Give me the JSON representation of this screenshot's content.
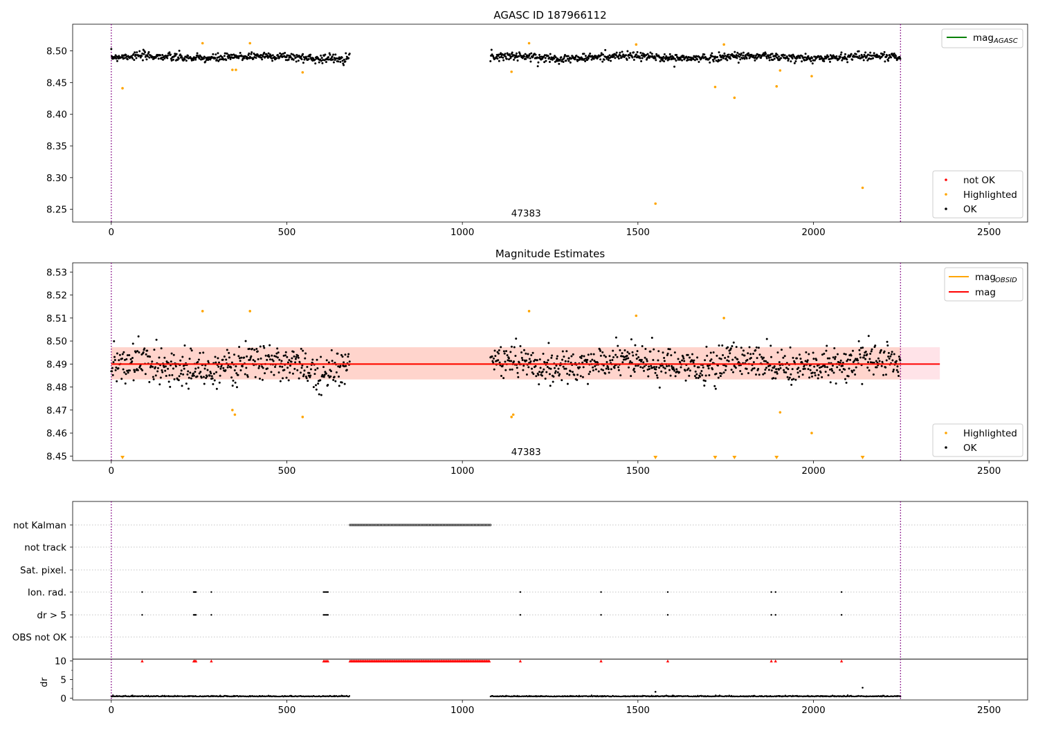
{
  "colors": {
    "ok": "#000000",
    "highlighted": "#ffa500",
    "not_ok": "#ff0000",
    "mag_agasc": "#008000",
    "mag_obsid": "#ffa500",
    "mag": "#ff0000",
    "band_outer": "#ffc0cb",
    "band_inner": "#ffc8b4",
    "boundary": "#800080",
    "grid": "#b0b0b0"
  },
  "chart_data": [
    {
      "type": "scatter",
      "title": "AGASC ID 187966112",
      "xlim": [
        -110,
        2610
      ],
      "ylim": [
        8.23,
        8.542
      ],
      "xticks": [
        0,
        500,
        1000,
        1500,
        2000,
        2500
      ],
      "yticks": [
        8.25,
        8.3,
        8.35,
        8.4,
        8.45,
        8.5
      ],
      "ytick_labels": [
        "8.25",
        "8.30",
        "8.35",
        "8.40",
        "8.45",
        "8.50"
      ],
      "obsid_annotation": {
        "text": "47383",
        "x": 1080
      },
      "boundaries_x": [
        0,
        2248
      ],
      "legend_top": {
        "placement": "top-right",
        "entries": [
          {
            "label": "mag",
            "sub": "AGASC",
            "color_key": "mag_agasc"
          }
        ]
      },
      "legend_bottom": {
        "placement": "bottom-right",
        "entries": [
          {
            "label": "not OK",
            "color_key": "not_ok"
          },
          {
            "label": "Highlighted",
            "color_key": "highlighted"
          },
          {
            "label": "OK",
            "color_key": "ok"
          }
        ]
      },
      "ok_segments": [
        {
          "x_range": [
            0,
            680
          ],
          "mean": 8.49,
          "spread": 0.0055
        },
        {
          "x_range": [
            1080,
            2248
          ],
          "mean": 8.49,
          "spread": 0.0055
        }
      ],
      "highlighted_points": [
        [
          32,
          8.441
        ],
        [
          260,
          8.512
        ],
        [
          345,
          8.47
        ],
        [
          355,
          8.47
        ],
        [
          395,
          8.512
        ],
        [
          545,
          8.466
        ],
        [
          1140,
          8.467
        ],
        [
          1190,
          8.512
        ],
        [
          1495,
          8.51
        ],
        [
          1550,
          8.259
        ],
        [
          1720,
          8.443
        ],
        [
          1745,
          8.51
        ],
        [
          1775,
          8.426
        ],
        [
          1895,
          8.444
        ],
        [
          1905,
          8.469
        ],
        [
          1995,
          8.46
        ],
        [
          2140,
          8.284
        ]
      ]
    },
    {
      "type": "scatter",
      "title": "Magnitude Estimates",
      "xlim": [
        -110,
        2610
      ],
      "ylim": [
        8.448,
        8.534
      ],
      "xticks": [
        0,
        500,
        1000,
        1500,
        2000,
        2500
      ],
      "yticks": [
        8.45,
        8.46,
        8.47,
        8.48,
        8.49,
        8.5,
        8.51,
        8.52,
        8.53
      ],
      "ytick_labels": [
        "8.45",
        "8.46",
        "8.47",
        "8.48",
        "8.49",
        "8.50",
        "8.51",
        "8.52",
        "8.53"
      ],
      "obsid_annotation": {
        "text": "47383",
        "x": 1080
      },
      "boundaries_x": [
        0,
        2248
      ],
      "mag_line": {
        "value": 8.49,
        "band_outer": [
          8.4833,
          8.4973
        ],
        "x_range": [
          0,
          2360
        ]
      },
      "mag_obsid_line": {
        "value": 8.49,
        "band": [
          8.4833,
          8.4973
        ],
        "x_range": [
          0,
          2248
        ]
      },
      "legend_top": {
        "placement": "top-right",
        "entries": [
          {
            "label": "mag",
            "sub": "OBSID",
            "color_key": "mag_obsid"
          },
          {
            "label": "mag",
            "sub": "",
            "color_key": "mag"
          }
        ]
      },
      "legend_bottom": {
        "placement": "bottom-right",
        "entries": [
          {
            "label": "Highlighted",
            "color_key": "highlighted"
          },
          {
            "label": "OK",
            "color_key": "ok"
          }
        ]
      },
      "ok_segments": [
        {
          "x_range": [
            0,
            680
          ],
          "mean": 8.489,
          "spread": 0.0065
        },
        {
          "x_range": [
            1080,
            2248
          ],
          "mean": 8.49,
          "spread": 0.006
        }
      ],
      "highlighted_points": [
        [
          260,
          8.513
        ],
        [
          345,
          8.47
        ],
        [
          352,
          8.468
        ],
        [
          395,
          8.513
        ],
        [
          545,
          8.467
        ],
        [
          1140,
          8.467
        ],
        [
          1145,
          8.468
        ],
        [
          1190,
          8.513
        ],
        [
          1495,
          8.511
        ],
        [
          1745,
          8.51
        ],
        [
          1905,
          8.469
        ],
        [
          1995,
          8.46
        ]
      ],
      "offscale_markers_x": [
        32,
        1550,
        1720,
        1775,
        1895,
        2140
      ]
    },
    {
      "type": "scatter",
      "xlim": [
        -110,
        2610
      ],
      "xticks": [
        0,
        500,
        1000,
        1500,
        2000,
        2500
      ],
      "boundaries_x": [
        0,
        2248
      ],
      "flag_rows": [
        "not Kalman",
        "not track",
        "Sat. pixel.",
        "Ion. rad.",
        "dr > 5",
        "OBS not OK"
      ],
      "flag_points": {
        "not Kalman": {
          "range": [
            680,
            1080
          ],
          "step": 4
        },
        "Ion. rad.": [
          88,
          235,
          238,
          241,
          285,
          605,
          609,
          613,
          617,
          1165,
          1395,
          1585,
          1880,
          1892,
          2080
        ],
        "dr > 5": [
          88,
          235,
          238,
          241,
          285,
          605,
          609,
          613,
          617,
          1165,
          1395,
          1585,
          1880,
          1892,
          2080
        ]
      },
      "dr": {
        "ylabel": "dr",
        "ylim": [
          -0.5,
          10.5
        ],
        "yticks": [
          0,
          5,
          10
        ],
        "ytick_labels": [
          "0",
          "5",
          "10"
        ],
        "clipped_x": [
          88,
          235,
          238,
          241,
          285,
          605,
          609,
          613,
          617,
          1165,
          1395,
          1585,
          1880,
          1892,
          2080
        ],
        "clipped_range": [
          680,
          1080
        ],
        "outliers": [
          [
            1550,
            1.7
          ],
          [
            2140,
            2.8
          ]
        ],
        "baseline": 0.4
      }
    }
  ]
}
